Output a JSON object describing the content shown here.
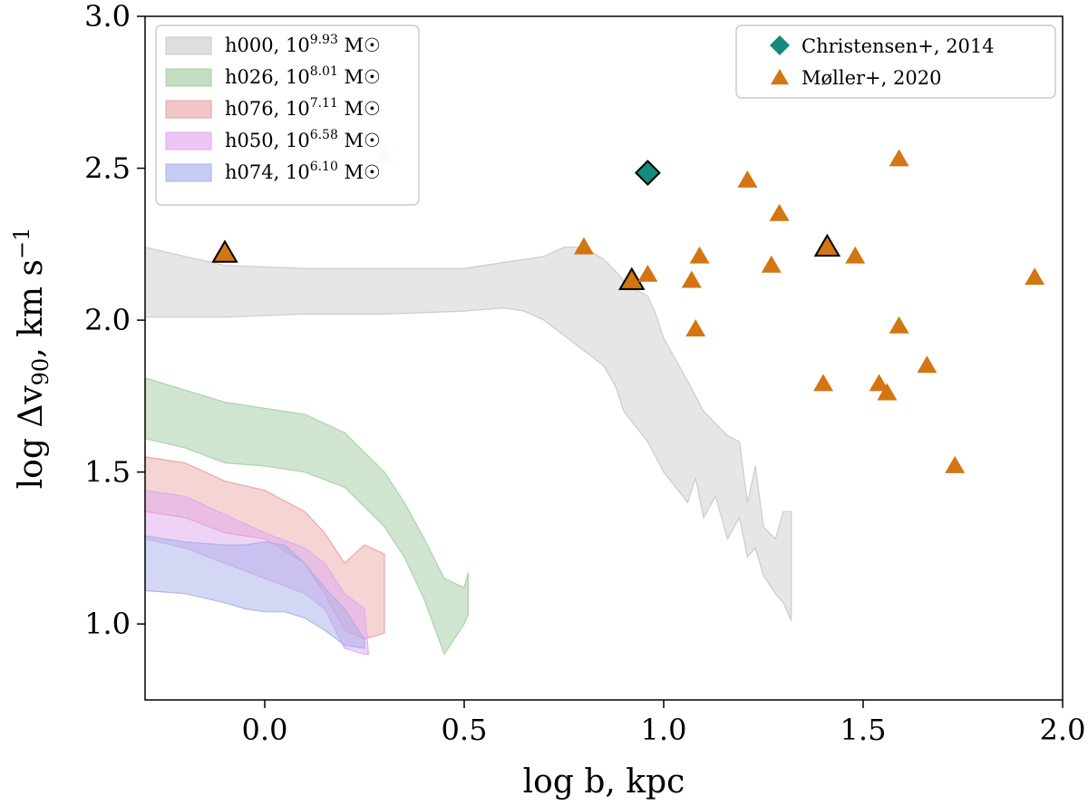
{
  "chart_data": {
    "type": "area",
    "xlabel": "log b, kpc",
    "ylabel_parts": {
      "prefix": "log Δv",
      "sub": "90",
      "mid": ", km s",
      "sup": "−1"
    },
    "xlim": [
      -0.3,
      2.0
    ],
    "ylim": [
      0.75,
      3.0
    ],
    "xticks": [
      0.0,
      0.5,
      1.0,
      1.5,
      2.0
    ],
    "xtick_labels": [
      "0.0",
      "0.5",
      "1.0",
      "1.5",
      "2.0"
    ],
    "yticks": [
      1.0,
      1.5,
      2.0,
      2.5,
      3.0
    ],
    "ytick_labels": [
      "1.0",
      "1.5",
      "2.0",
      "2.5",
      "3.0"
    ],
    "band_series": [
      {
        "name": "h000",
        "exp": "9.93",
        "unit": " M☉",
        "color": "#c8c8c8",
        "opacity": 0.45,
        "x": [
          -0.3,
          -0.1,
          0.1,
          0.3,
          0.5,
          0.6,
          0.65,
          0.7,
          0.75,
          0.8,
          0.85,
          0.88,
          0.9,
          0.93,
          0.96,
          0.98,
          1.0,
          1.03,
          1.06,
          1.08,
          1.1,
          1.13,
          1.16,
          1.19,
          1.21,
          1.23,
          1.25,
          1.28,
          1.3,
          1.32
        ],
        "upper": [
          2.24,
          2.18,
          2.17,
          2.17,
          2.17,
          2.19,
          2.2,
          2.21,
          2.24,
          2.24,
          2.2,
          2.16,
          2.13,
          2.1,
          2.08,
          2.02,
          1.94,
          1.87,
          1.8,
          1.75,
          1.7,
          1.66,
          1.62,
          1.6,
          1.4,
          1.52,
          1.32,
          1.28,
          1.37,
          1.37
        ],
        "lower": [
          2.01,
          2.01,
          2.02,
          2.02,
          2.03,
          2.04,
          2.03,
          2.0,
          1.95,
          1.9,
          1.85,
          1.78,
          1.7,
          1.65,
          1.6,
          1.55,
          1.5,
          1.45,
          1.4,
          1.48,
          1.35,
          1.42,
          1.28,
          1.35,
          1.22,
          1.25,
          1.16,
          1.1,
          1.07,
          1.01
        ]
      },
      {
        "name": "h026",
        "exp": "8.01",
        "unit": " M☉",
        "color": "#a8cfa8",
        "opacity": 0.55,
        "x": [
          -0.3,
          -0.2,
          -0.1,
          0.0,
          0.1,
          0.2,
          0.3,
          0.35,
          0.4,
          0.45,
          0.5,
          0.51
        ],
        "upper": [
          1.81,
          1.77,
          1.73,
          1.71,
          1.69,
          1.63,
          1.5,
          1.4,
          1.28,
          1.15,
          1.12,
          1.17
        ],
        "lower": [
          1.61,
          1.58,
          1.53,
          1.52,
          1.5,
          1.45,
          1.32,
          1.22,
          1.08,
          0.9,
          1.0,
          1.03
        ]
      },
      {
        "name": "h076",
        "exp": "7.11",
        "unit": " M☉",
        "color": "#e8a0a0",
        "opacity": 0.45,
        "x": [
          -0.3,
          -0.2,
          -0.1,
          0.0,
          0.1,
          0.15,
          0.2,
          0.25,
          0.3
        ],
        "upper": [
          1.55,
          1.53,
          1.47,
          1.44,
          1.37,
          1.3,
          1.2,
          1.26,
          1.23
        ],
        "lower": [
          1.37,
          1.35,
          1.3,
          1.28,
          1.2,
          1.1,
          0.98,
          0.95,
          0.97
        ]
      },
      {
        "name": "h050",
        "exp": "6.58",
        "unit": " M☉",
        "color": "#e0a8f0",
        "opacity": 0.5,
        "x": [
          -0.3,
          -0.2,
          -0.1,
          0.0,
          0.1,
          0.15,
          0.2,
          0.25,
          0.26
        ],
        "upper": [
          1.44,
          1.42,
          1.36,
          1.3,
          1.25,
          1.2,
          1.1,
          1.05,
          0.9
        ],
        "lower": [
          1.28,
          1.25,
          1.2,
          1.15,
          1.1,
          1.05,
          0.92,
          0.9,
          0.9
        ]
      },
      {
        "name": "h074",
        "exp": "6.10",
        "unit": " M☉",
        "color": "#a8b0ea",
        "opacity": 0.5,
        "x": [
          -0.3,
          -0.2,
          -0.1,
          -0.05,
          0.0,
          0.05,
          0.1,
          0.15,
          0.2,
          0.25
        ],
        "upper": [
          1.29,
          1.27,
          1.26,
          1.26,
          1.27,
          1.26,
          1.2,
          1.12,
          1.05,
          0.95
        ],
        "lower": [
          1.11,
          1.1,
          1.07,
          1.05,
          1.04,
          1.04,
          1.02,
          0.98,
          0.93,
          0.92
        ]
      }
    ],
    "scatter_series": [
      {
        "name": "Christensen+, 2014",
        "marker": "diamond",
        "color": "#168a7d",
        "points": [
          [
            0.96,
            2.485
          ]
        ],
        "outlined": [
          true
        ]
      },
      {
        "name": "Møller+, 2020",
        "marker": "triangle",
        "color": "#d37512",
        "points": [
          [
            -0.1,
            2.22
          ],
          [
            0.3,
            2.54
          ],
          [
            0.8,
            2.24
          ],
          [
            0.92,
            2.13
          ],
          [
            0.96,
            2.15
          ],
          [
            1.07,
            2.13
          ],
          [
            1.08,
            1.97
          ],
          [
            1.09,
            2.21
          ],
          [
            1.21,
            2.46
          ],
          [
            1.27,
            2.18
          ],
          [
            1.29,
            2.35
          ],
          [
            1.4,
            1.79
          ],
          [
            1.41,
            2.24
          ],
          [
            1.48,
            2.21
          ],
          [
            1.54,
            1.79
          ],
          [
            1.56,
            1.76
          ],
          [
            1.59,
            1.98
          ],
          [
            1.59,
            2.53
          ],
          [
            1.66,
            1.85
          ],
          [
            1.73,
            1.52
          ],
          [
            1.93,
            2.14
          ]
        ],
        "outlined": [
          true,
          false,
          false,
          true,
          false,
          false,
          false,
          false,
          false,
          false,
          false,
          false,
          true,
          false,
          false,
          false,
          false,
          false,
          false,
          false,
          false
        ],
        "faded": [
          false,
          true,
          false,
          false,
          false,
          false,
          false,
          false,
          false,
          false,
          false,
          false,
          false,
          false,
          false,
          false,
          false,
          false,
          false,
          false,
          false
        ]
      }
    ],
    "legend_left_position": "upper-left",
    "legend_right_position": "upper-right",
    "grid": false
  }
}
